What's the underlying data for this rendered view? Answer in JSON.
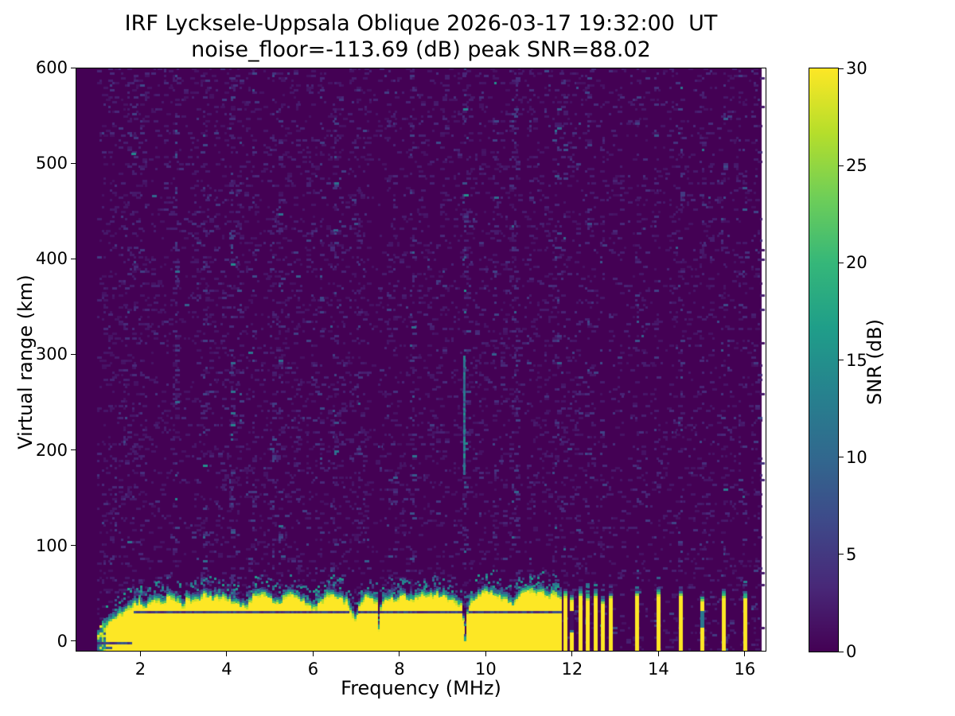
{
  "chart_data": {
    "type": "heatmap",
    "title": "IRF Lycksele-Uppsala Oblique 2026-03-17 19:32:00  UT",
    "subtitle": "noise_floor=-113.69 (dB) peak SNR=88.02",
    "xlabel": "Frequency (MHz)",
    "ylabel": "Virtual range (km)",
    "colorbar_label": "SNR (dB)",
    "noise_floor_db": -113.69,
    "peak_snr_db": 88.02,
    "xlim": [
      0.5,
      16.5
    ],
    "ylim": [
      -10,
      600
    ],
    "clim": [
      0,
      30
    ],
    "x_ticks": [
      2,
      4,
      6,
      8,
      10,
      12,
      14,
      16
    ],
    "y_ticks": [
      0,
      100,
      200,
      300,
      400,
      500,
      600
    ],
    "colorbar_ticks": [
      0,
      5,
      10,
      15,
      20,
      25,
      30
    ],
    "colormap": {
      "name": "viridis",
      "stops": [
        "#440154",
        "#482878",
        "#3e4989",
        "#31688e",
        "#26828e",
        "#1f9e89",
        "#35b779",
        "#6ece58",
        "#b5de2b",
        "#fde725"
      ]
    },
    "grid": {
      "f_start": 0.5,
      "f_end": 16.39,
      "df": 0.05,
      "r_start": -10,
      "r_end": 600,
      "dr": 2.5
    },
    "background_snr_db": 0,
    "echo_band": {
      "f_start": 1.0,
      "f_end": 11.73,
      "value_db": 30,
      "dark_row_km": 30,
      "envelope_km": [
        [
          1.0,
          6
        ],
        [
          1.05,
          10
        ],
        [
          1.1,
          14
        ],
        [
          1.2,
          20
        ],
        [
          1.3,
          24
        ],
        [
          1.45,
          28
        ],
        [
          1.6,
          34
        ],
        [
          1.8,
          38
        ],
        [
          2.0,
          44
        ],
        [
          2.15,
          38
        ],
        [
          2.3,
          46
        ],
        [
          2.5,
          42
        ],
        [
          2.7,
          50
        ],
        [
          2.85,
          44
        ],
        [
          3.0,
          40
        ],
        [
          3.1,
          48
        ],
        [
          3.3,
          44
        ],
        [
          3.5,
          52
        ],
        [
          3.7,
          46
        ],
        [
          3.9,
          50
        ],
        [
          4.1,
          44
        ],
        [
          4.3,
          40
        ],
        [
          4.45,
          36
        ],
        [
          4.6,
          48
        ],
        [
          4.8,
          52
        ],
        [
          5.0,
          46
        ],
        [
          5.2,
          42
        ],
        [
          5.35,
          48
        ],
        [
          5.5,
          52
        ],
        [
          5.7,
          46
        ],
        [
          5.9,
          40
        ],
        [
          6.05,
          36
        ],
        [
          6.2,
          46
        ],
        [
          6.4,
          52
        ],
        [
          6.6,
          48
        ],
        [
          6.8,
          44
        ],
        [
          6.92,
          30
        ],
        [
          7.0,
          26
        ],
        [
          7.1,
          44
        ],
        [
          7.25,
          48
        ],
        [
          7.4,
          46
        ],
        [
          7.5,
          44
        ],
        [
          7.53,
          8
        ],
        [
          7.58,
          42
        ],
        [
          7.75,
          48
        ],
        [
          7.9,
          44
        ],
        [
          8.1,
          50
        ],
        [
          8.3,
          44
        ],
        [
          8.5,
          52
        ],
        [
          8.7,
          48
        ],
        [
          8.9,
          52
        ],
        [
          9.1,
          46
        ],
        [
          9.3,
          42
        ],
        [
          9.45,
          38
        ],
        [
          9.52,
          3
        ],
        [
          9.6,
          40
        ],
        [
          9.75,
          48
        ],
        [
          9.9,
          52
        ],
        [
          10.1,
          54
        ],
        [
          10.3,
          50
        ],
        [
          10.5,
          44
        ],
        [
          10.65,
          40
        ],
        [
          10.8,
          50
        ],
        [
          11.0,
          56
        ],
        [
          11.15,
          52
        ],
        [
          11.3,
          56
        ],
        [
          11.45,
          50
        ],
        [
          11.6,
          52
        ],
        [
          11.73,
          46
        ]
      ]
    },
    "rfi_stripes": [
      {
        "f": 11.83,
        "top_km": 50
      },
      {
        "f": 11.98,
        "top_km": 46,
        "gaps": [
          [
            12,
            32
          ]
        ]
      },
      {
        "f": 12.18,
        "top_km": 50
      },
      {
        "f": 12.36,
        "top_km": 48
      },
      {
        "f": 12.54,
        "top_km": 50
      },
      {
        "f": 12.7,
        "top_km": 42
      },
      {
        "f": 12.88,
        "top_km": 48
      },
      {
        "f": 13.5,
        "top_km": 50
      },
      {
        "f": 14.0,
        "top_km": 52
      },
      {
        "f": 14.5,
        "top_km": 50
      },
      {
        "f": 15.0,
        "top_km": 44,
        "teal": [
          14,
          32
        ]
      },
      {
        "f": 15.5,
        "top_km": 50
      },
      {
        "f": 16.0,
        "top_km": 48
      }
    ],
    "noise_streaks": [
      {
        "f": 1.82,
        "boost": 1.6
      },
      {
        "f": 2.83,
        "boost": 2.6
      },
      {
        "f": 3.5,
        "boost": 2.2
      },
      {
        "f": 4.1,
        "boost": 1.8
      },
      {
        "f": 5.23,
        "boost": 2.4
      },
      {
        "f": 6.5,
        "boost": 2.0
      },
      {
        "f": 7.0,
        "boost": 1.8
      },
      {
        "f": 8.3,
        "boost": 3.2
      },
      {
        "f": 9.5,
        "boost": 3.6,
        "segment_km": [
          175,
          300
        ]
      },
      {
        "f": 10.17,
        "boost": 2.4
      },
      {
        "f": 10.65,
        "boost": 1.8
      },
      {
        "f": 11.65,
        "boost": 2.0
      }
    ],
    "bright_specks": [
      [
        1.82,
        510,
        14
      ],
      [
        2.3,
        466,
        10
      ],
      [
        9.5,
        556,
        13
      ],
      [
        9.5,
        207,
        14
      ],
      [
        8.3,
        328,
        11
      ],
      [
        3.05,
        352,
        9
      ],
      [
        5.23,
        120,
        11
      ],
      [
        6.5,
        430,
        9
      ],
      [
        2.83,
        250,
        10
      ],
      [
        10.17,
        300,
        9
      ],
      [
        4.35,
        -5,
        12
      ],
      [
        6.7,
        -3,
        11
      ],
      [
        7.2,
        -6,
        12
      ],
      [
        9.6,
        -4,
        11
      ],
      [
        5.2,
        -8,
        10
      ]
    ]
  }
}
